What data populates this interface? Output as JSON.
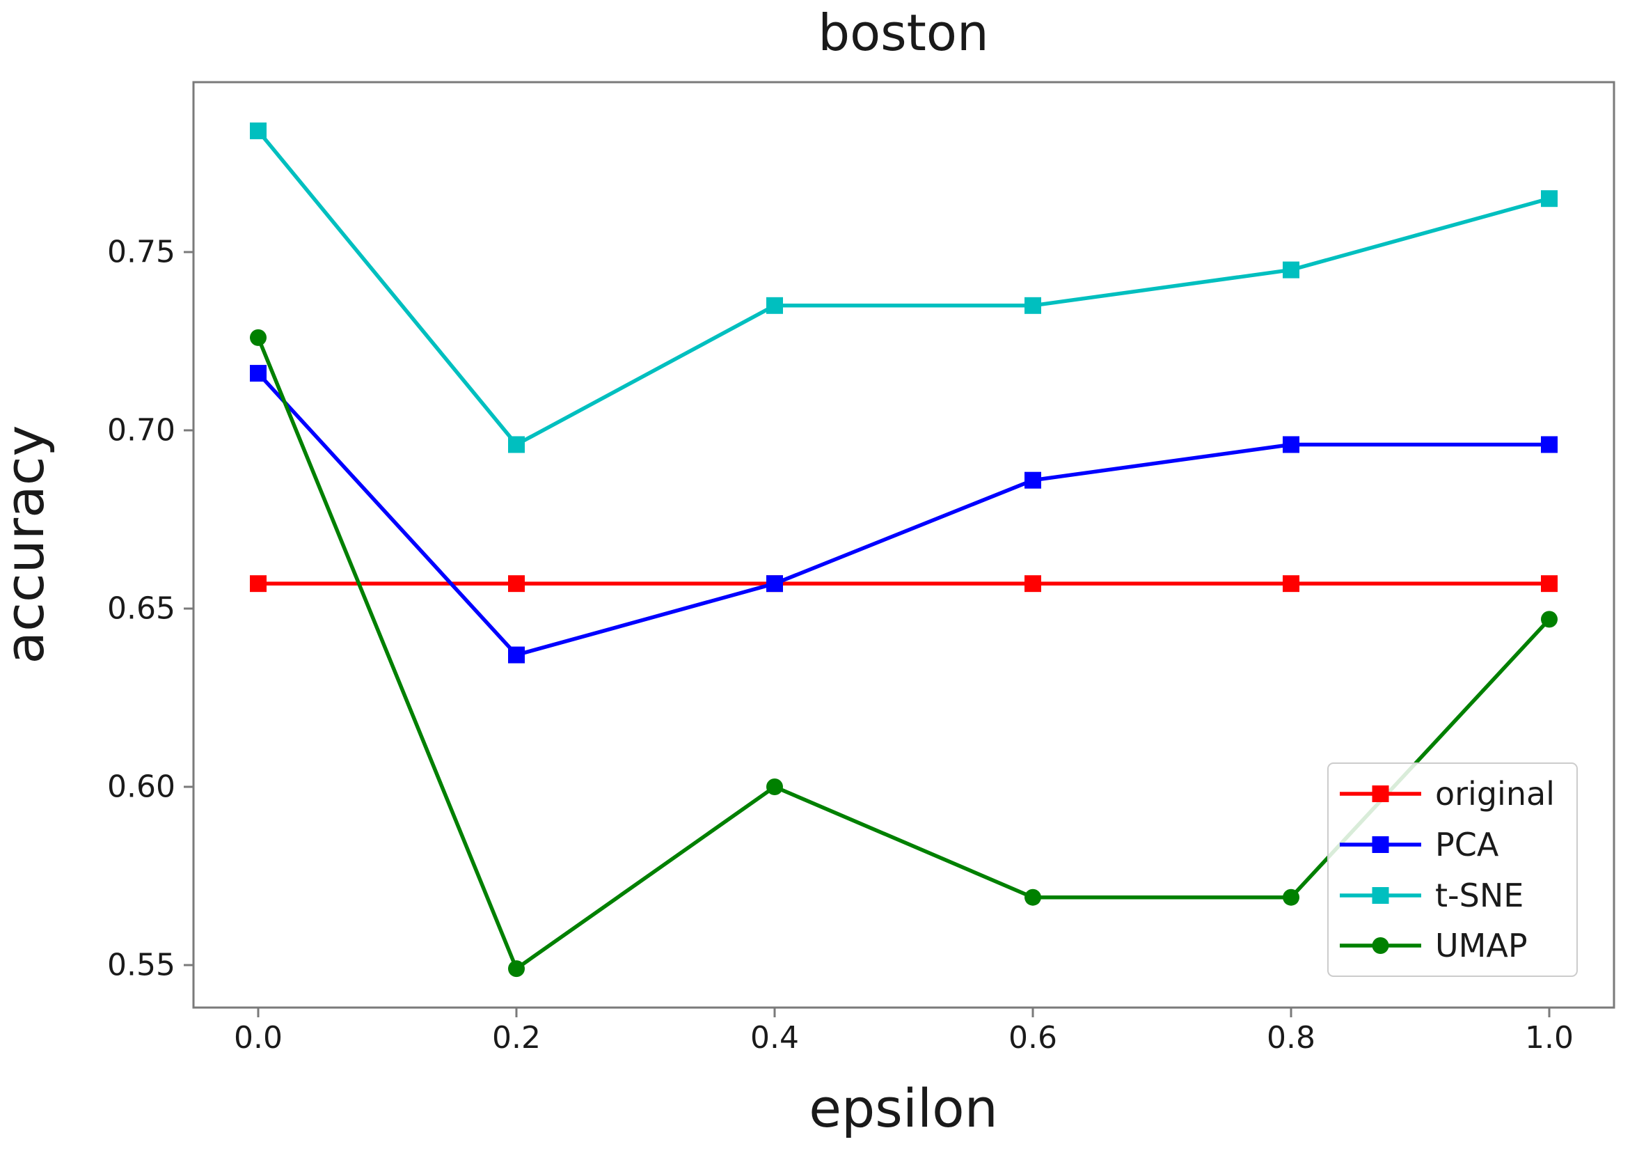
{
  "figure": {
    "title": "boston",
    "xlabel": "epsilon",
    "ylabel": "accuracy"
  },
  "chart_data": {
    "type": "line",
    "title": "boston",
    "xlabel": "epsilon",
    "ylabel": "accuracy",
    "x": [
      0.0,
      0.2,
      0.4,
      0.6,
      0.8,
      1.0
    ],
    "xtick_labels": [
      "0.0",
      "0.2",
      "0.4",
      "0.6",
      "0.8",
      "1.0"
    ],
    "ytick_values": [
      0.55,
      0.6,
      0.65,
      0.7,
      0.75
    ],
    "ytick_labels": [
      "0.55",
      "0.60",
      "0.65",
      "0.70",
      "0.75"
    ],
    "xlim": [
      -0.05,
      1.05
    ],
    "ylim": [
      0.538,
      0.798
    ],
    "grid": false,
    "legend_position": "lower right",
    "series": [
      {
        "name": "original",
        "color": "#ff0000",
        "marker": "square",
        "values": [
          0.657,
          0.657,
          0.657,
          0.657,
          0.657,
          0.657
        ]
      },
      {
        "name": "PCA",
        "color": "#0000ff",
        "marker": "square",
        "values": [
          0.716,
          0.637,
          0.657,
          0.686,
          0.696,
          0.696
        ]
      },
      {
        "name": "t-SNE",
        "color": "#00bfbf",
        "marker": "square",
        "values": [
          0.784,
          0.696,
          0.735,
          0.735,
          0.745,
          0.765
        ]
      },
      {
        "name": "UMAP",
        "color": "#008000",
        "marker": "circle",
        "values": [
          0.726,
          0.549,
          0.6,
          0.569,
          0.569,
          0.647
        ]
      }
    ]
  }
}
